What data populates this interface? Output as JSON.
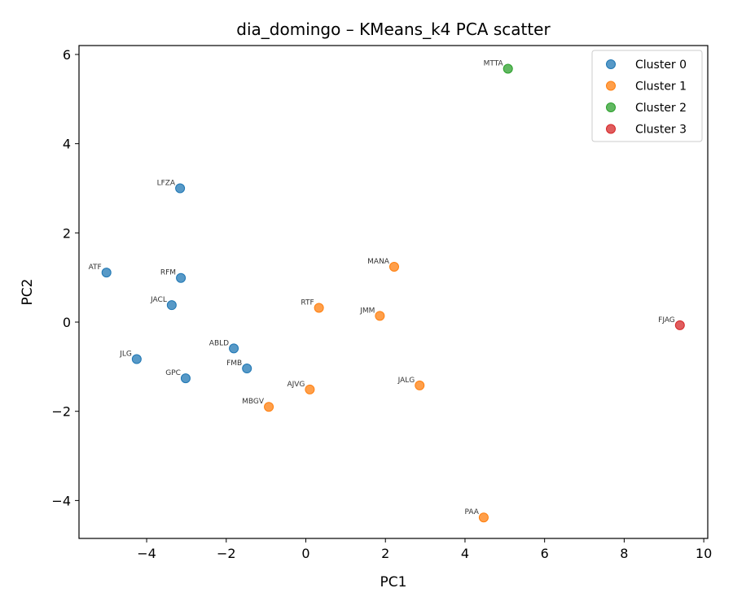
{
  "chart_data": {
    "type": "scatter",
    "title": "dia_domingo – KMeans_k4 PCA scatter",
    "xlabel": "PC1",
    "ylabel": "PC2",
    "xlim": [
      -5.7,
      10.1
    ],
    "ylim": [
      -4.85,
      6.2
    ],
    "xticks": [
      -4,
      -2,
      0,
      2,
      4,
      6,
      8,
      10
    ],
    "yticks": [
      -4,
      -2,
      0,
      2,
      4,
      6
    ],
    "grid": false,
    "legend_position": "top-right",
    "series": [
      {
        "name": "Cluster 0",
        "color": "#1f77b4",
        "points": [
          {
            "label": "LFZA",
            "x": -3.16,
            "y": 3.0
          },
          {
            "label": "ATF",
            "x": -5.01,
            "y": 1.11
          },
          {
            "label": "RFM",
            "x": -3.14,
            "y": 0.99
          },
          {
            "label": "JACL",
            "x": -3.37,
            "y": 0.38
          },
          {
            "label": "ABLD",
            "x": -1.81,
            "y": -0.59
          },
          {
            "label": "JLG",
            "x": -4.25,
            "y": -0.83
          },
          {
            "label": "FMB",
            "x": -1.48,
            "y": -1.04
          },
          {
            "label": "GPC",
            "x": -3.02,
            "y": -1.26
          }
        ]
      },
      {
        "name": "Cluster 1",
        "color": "#ff7f0e",
        "points": [
          {
            "label": "MANA",
            "x": 2.22,
            "y": 1.24
          },
          {
            "label": "RTF",
            "x": 0.33,
            "y": 0.32
          },
          {
            "label": "JMM",
            "x": 1.86,
            "y": 0.14
          },
          {
            "label": "AJVG",
            "x": 0.1,
            "y": -1.51
          },
          {
            "label": "JALG",
            "x": 2.86,
            "y": -1.42
          },
          {
            "label": "MBGV",
            "x": -0.93,
            "y": -1.9
          },
          {
            "label": "PAA",
            "x": 4.47,
            "y": -4.38
          }
        ]
      },
      {
        "name": "Cluster 2",
        "color": "#2ca02c",
        "points": [
          {
            "label": "MTTA",
            "x": 5.08,
            "y": 5.68
          }
        ]
      },
      {
        "name": "Cluster 3",
        "color": "#d62728",
        "points": [
          {
            "label": "FJAG",
            "x": 9.4,
            "y": -0.07
          }
        ]
      }
    ]
  }
}
